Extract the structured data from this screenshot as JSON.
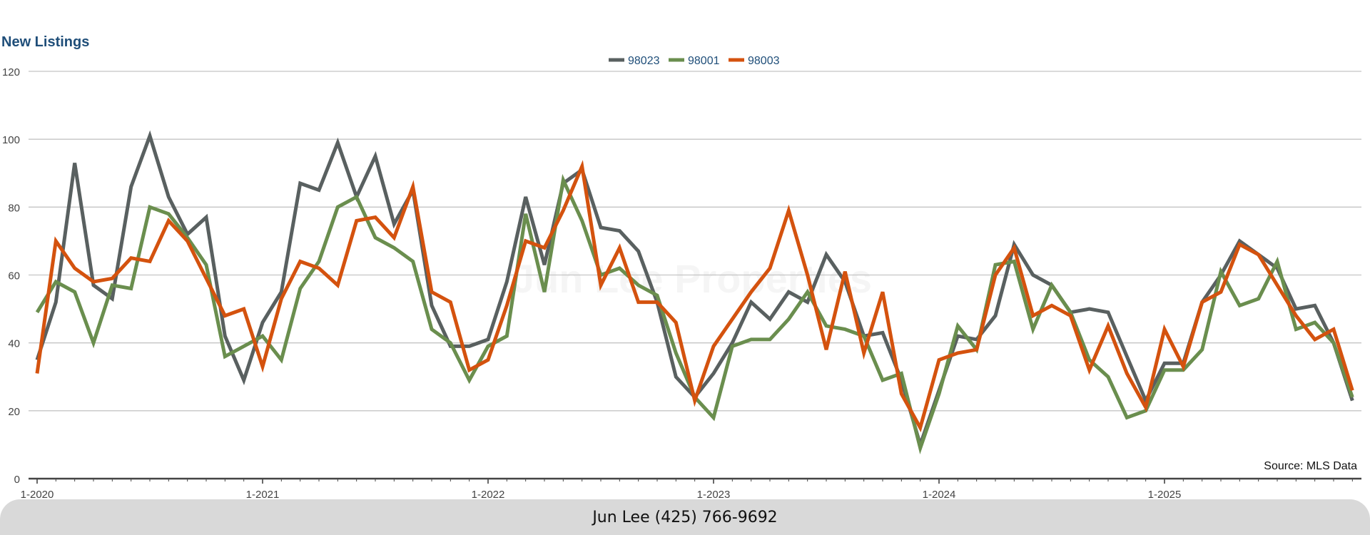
{
  "colors": {
    "98023": "#596060",
    "98001": "#6a8e4e",
    "98003": "#d4520e"
  },
  "footer": {
    "text": "Jun Lee (425) 766-9692"
  },
  "chart_data": {
    "type": "line",
    "title": "New Listings",
    "watermark": "Jun Lee Properties",
    "source": "Source: MLS Data",
    "xlabel": "",
    "ylabel": "",
    "ylim": [
      0,
      120
    ],
    "yticks": [
      0,
      20,
      40,
      60,
      80,
      100,
      120
    ],
    "x_start": "1-2020",
    "xticks": [
      "1-2020",
      "1-2021",
      "1-2022",
      "1-2023",
      "1-2024",
      "1-2025"
    ],
    "grid": true,
    "legend": "top-center",
    "series": [
      {
        "name": "98023",
        "color": "#596060",
        "values": [
          35,
          52,
          93,
          57,
          53,
          86,
          101,
          83,
          72,
          77,
          42,
          29,
          46,
          55,
          87,
          85,
          99,
          83,
          95,
          75,
          85,
          51,
          39,
          39,
          41,
          58,
          83,
          63,
          87,
          91,
          74,
          73,
          67,
          52,
          30,
          24,
          31,
          40,
          52,
          47,
          55,
          52,
          66,
          58,
          42,
          43,
          29,
          10,
          26,
          42,
          41,
          48,
          69,
          60,
          57,
          49,
          50,
          49,
          36,
          23,
          34,
          34,
          52,
          60,
          70,
          66,
          62,
          50,
          51,
          40,
          23
        ]
      },
      {
        "name": "98001",
        "color": "#6a8e4e",
        "values": [
          49,
          58,
          55,
          40,
          57,
          56,
          80,
          78,
          71,
          63,
          36,
          39,
          42,
          35,
          56,
          64,
          80,
          83,
          71,
          68,
          64,
          44,
          40,
          29,
          39,
          42,
          78,
          55,
          88,
          76,
          60,
          62,
          57,
          54,
          37,
          24,
          18,
          39,
          41,
          41,
          47,
          55,
          45,
          44,
          42,
          29,
          31,
          9,
          25,
          45,
          38,
          63,
          64,
          44,
          57,
          49,
          35,
          30,
          18,
          20,
          32,
          32,
          38,
          61,
          51,
          53,
          64,
          44,
          46,
          40,
          24
        ]
      },
      {
        "name": "98003",
        "color": "#d4520e",
        "values": [
          31,
          70,
          62,
          58,
          59,
          65,
          64,
          76,
          70,
          59,
          48,
          50,
          33,
          53,
          64,
          62,
          57,
          76,
          77,
          71,
          86,
          55,
          52,
          32,
          35,
          51,
          70,
          68,
          79,
          92,
          57,
          68,
          52,
          52,
          46,
          23,
          39,
          47,
          55,
          62,
          79,
          60,
          38,
          61,
          37,
          55,
          25,
          15,
          35,
          37,
          38,
          60,
          68,
          48,
          51,
          48,
          32,
          45,
          31,
          21,
          44,
          33,
          52,
          55,
          69,
          66,
          57,
          48,
          41,
          44,
          26
        ]
      }
    ]
  }
}
